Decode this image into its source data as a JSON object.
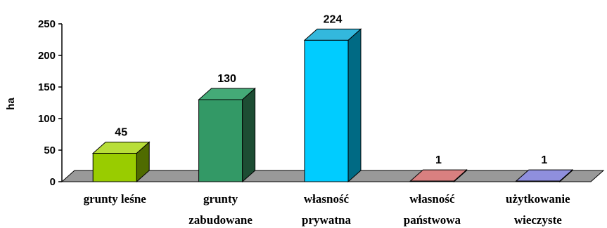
{
  "chart_data": {
    "type": "bar",
    "style": "3d",
    "categories": [
      [
        "grunty leśne"
      ],
      [
        "grunty",
        "zabudowane"
      ],
      [
        "własność",
        "prywatna"
      ],
      [
        "własność",
        "państwowa"
      ],
      [
        "użytkowanie",
        "wieczyste"
      ]
    ],
    "values": [
      45,
      130,
      224,
      1,
      1
    ],
    "data_labels": [
      "45",
      "130",
      "224",
      "1",
      "1"
    ],
    "ylabel": "ha",
    "ylim": [
      0,
      250
    ],
    "yticks": [
      "0",
      "50",
      "100",
      "150",
      "200",
      "250"
    ],
    "grid": false,
    "legend": false,
    "colors": {
      "bars": [
        {
          "front": "#99cc00",
          "top": "#b8de3a",
          "side": "#4f6b00"
        },
        {
          "front": "#339966",
          "top": "#44aa77",
          "side": "#1d4d33"
        },
        {
          "front": "#00ccff",
          "top": "#33b8dd",
          "side": "#006a84"
        },
        {
          "front": "#cc6666",
          "top": "#d98080",
          "side": "#7a3030"
        },
        {
          "front": "#7777cc",
          "top": "#8f8fdd",
          "side": "#3e3e80"
        }
      ],
      "floor": "#999999",
      "axis": "#000000"
    }
  }
}
